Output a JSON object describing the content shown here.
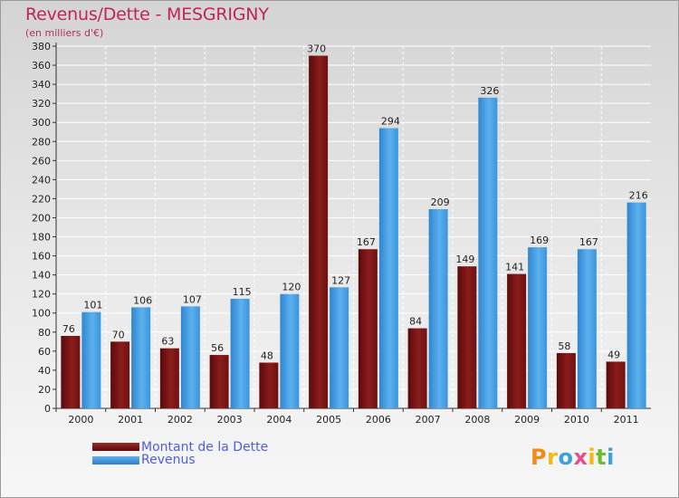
{
  "title": "Revenus/Dette - MESGRIGNY",
  "subtitle": "(en milliers d'€)",
  "logo": "Proxiti",
  "chart_data": {
    "type": "bar",
    "title": "Revenus/Dette - MESGRIGNY",
    "ylabel": "(en milliers d'€)",
    "ylim": [
      0,
      380
    ],
    "yticks": [
      0,
      20,
      40,
      60,
      80,
      100,
      120,
      140,
      160,
      180,
      200,
      220,
      240,
      260,
      280,
      300,
      320,
      340,
      360,
      380
    ],
    "categories": [
      "2000",
      "2001",
      "2002",
      "2003",
      "2004",
      "2005",
      "2006",
      "2007",
      "2008",
      "2009",
      "2010",
      "2011"
    ],
    "series": [
      {
        "name": "Montant de la Dette",
        "color": "#8b1a1a",
        "values": [
          76,
          70,
          63,
          56,
          48,
          370,
          167,
          84,
          149,
          141,
          58,
          49
        ]
      },
      {
        "name": "Revenus",
        "color": "#3a96de",
        "values": [
          101,
          106,
          107,
          115,
          120,
          127,
          294,
          209,
          326,
          169,
          167,
          216
        ]
      }
    ],
    "legend": "bottom-left"
  },
  "colors": {
    "title": "#c0245a",
    "debt_top": "#9e2a2a",
    "debt_bottom": "#5a0a0a",
    "rev_top": "#5fb0ec",
    "rev_bottom": "#2a7fc8",
    "legend_text": "#4f5de0"
  }
}
